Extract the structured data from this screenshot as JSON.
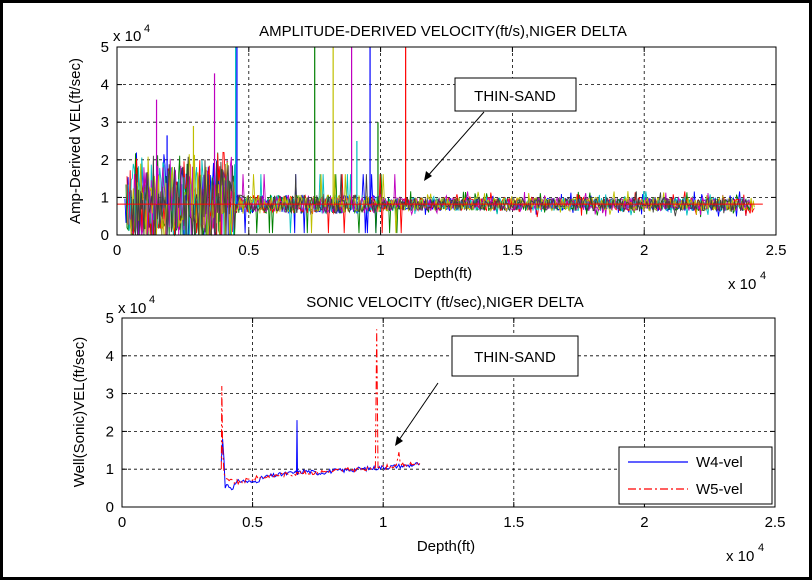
{
  "chart_data": [
    {
      "type": "line",
      "title": "AMPLITUDE-DERIVED VELOCITY(ft/s),NIGER DELTA",
      "xlabel": "Depth(ft)",
      "ylabel": "Amp-Derived VEL(ft/sec)",
      "x_exponent_label": "x 10",
      "x_exponent": "4",
      "y_exponent_label": "x 10",
      "y_exponent": "4",
      "xlim": [
        0,
        2.5
      ],
      "ylim": [
        0,
        5
      ],
      "xticks": [
        "0",
        "0.5",
        "1",
        "1.5",
        "2",
        "2.5"
      ],
      "yticks": [
        "0",
        "1",
        "2",
        "3",
        "4",
        "5"
      ],
      "grid": true,
      "baseline_level": 0.82,
      "series_colors": [
        "#0000ff",
        "#008000",
        "#ff0000",
        "#00bfbf",
        "#bf00bf",
        "#bfbf00",
        "#404040"
      ],
      "spikes": [
        {
          "x": 0.45,
          "y": 5.0,
          "color": "#00bfbf"
        },
        {
          "x": 0.455,
          "y": 5.0,
          "color": "#0000ff"
        },
        {
          "x": 0.37,
          "y": 4.3,
          "color": "#bf00bf"
        },
        {
          "x": 0.15,
          "y": 3.6,
          "color": "#bf00bf"
        },
        {
          "x": 0.29,
          "y": 2.9,
          "color": "#bfbf00"
        },
        {
          "x": 0.19,
          "y": 2.65,
          "color": "#0000ff"
        },
        {
          "x": 0.75,
          "y": 5.0,
          "color": "#008000"
        },
        {
          "x": 0.82,
          "y": 5.0,
          "color": "#bfbf00"
        },
        {
          "x": 0.89,
          "y": 5.0,
          "color": "#bf00bf"
        },
        {
          "x": 0.96,
          "y": 5.0,
          "color": "#0000ff"
        },
        {
          "x": 1.095,
          "y": 5.0,
          "color": "#ff0000"
        },
        {
          "x": 0.99,
          "y": 3.0,
          "color": "#008000"
        },
        {
          "x": 0.91,
          "y": 2.5,
          "color": "#00bfbf"
        }
      ],
      "annotation": {
        "text": "THIN-SAND",
        "x": 1.15,
        "y": 1.5
      }
    },
    {
      "type": "line",
      "title": "SONIC VELOCITY  (ft/sec),NIGER DELTA",
      "xlabel": "Depth(ft)",
      "ylabel": "Well(Sonic)VEL(ft/sec)",
      "x_exponent_label": "x 10",
      "x_exponent": "4",
      "y_exponent_label": "x 10",
      "y_exponent": "4",
      "xlim": [
        0,
        2.5
      ],
      "ylim": [
        0,
        5
      ],
      "xticks": [
        "0",
        "0.5",
        "1",
        "1.5",
        "2",
        "2.5"
      ],
      "yticks": [
        "0",
        "1",
        "2",
        "3",
        "4",
        "5"
      ],
      "grid": true,
      "series": [
        {
          "name": "W4-vel",
          "color": "#0000ff",
          "style": "solid",
          "x": [
            0.38,
            0.385,
            0.39,
            0.395,
            0.4,
            0.42,
            0.45,
            0.5,
            0.55,
            0.6,
            0.65,
            0.668,
            0.67,
            0.672,
            0.7,
            0.75,
            0.8,
            0.85,
            0.9,
            0.95,
            1.0,
            1.05,
            1.1,
            1.14
          ],
          "y": [
            1.2,
            1.8,
            1.3,
            0.5,
            0.6,
            0.5,
            0.7,
            0.65,
            0.8,
            0.85,
            0.9,
            0.9,
            2.3,
            0.9,
            0.95,
            0.9,
            0.95,
            0.97,
            1.0,
            1.02,
            1.05,
            1.08,
            1.1,
            1.15
          ]
        },
        {
          "name": "W5-vel",
          "color": "#ff0000",
          "style": "dashdot",
          "x": [
            0.38,
            0.382,
            0.385,
            0.39,
            0.4,
            0.45,
            0.5,
            0.6,
            0.7,
            0.8,
            0.9,
            0.95,
            0.97,
            0.975,
            0.98,
            1.0,
            1.05,
            1.06,
            1.065,
            1.1,
            1.14
          ],
          "y": [
            1.0,
            3.2,
            1.6,
            0.9,
            0.7,
            0.65,
            0.75,
            0.85,
            0.9,
            0.95,
            1.0,
            1.0,
            1.05,
            4.7,
            1.1,
            1.05,
            1.1,
            1.45,
            1.1,
            1.12,
            1.15
          ]
        }
      ],
      "legend": {
        "position": "bottom-right",
        "entries": [
          "W4-vel",
          "W5-vel"
        ]
      },
      "annotation": {
        "text": "THIN-SAND",
        "x": 1.05,
        "y": 1.6
      }
    }
  ]
}
